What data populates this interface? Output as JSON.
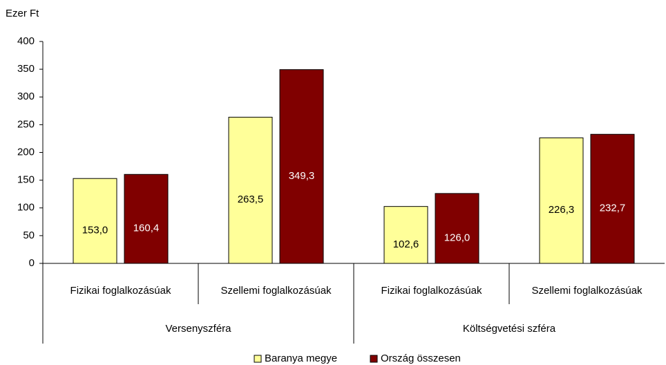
{
  "chart_data": {
    "type": "bar",
    "y_label": "Ezer Ft",
    "categories": [
      "Fizikai foglalkozásúak",
      "Szellemi foglalkozásúak",
      "Fizikai foglalkozásúak",
      "Szellemi foglalkozásúak"
    ],
    "groups": [
      "Versenyszféra",
      "Költségvetési szféra"
    ],
    "series": [
      {
        "name": "Baranya megye",
        "color": "#ffff99",
        "label_color": "#000000",
        "values": [
          153.0,
          263.5,
          102.6,
          226.3
        ],
        "value_labels": [
          "153,0",
          "263,5",
          "102,6",
          "226,3"
        ]
      },
      {
        "name": "Ország összesen",
        "color": "#800000",
        "label_color": "#ffffff",
        "values": [
          160.4,
          349.3,
          126.0,
          232.7
        ],
        "value_labels": [
          "160,4",
          "349,3",
          "126,0",
          "232,7"
        ]
      }
    ],
    "ylim": [
      0,
      400
    ],
    "yticks": [
      0,
      50,
      100,
      150,
      200,
      250,
      300,
      350,
      400
    ],
    "grid": false,
    "legend": "bottom"
  }
}
